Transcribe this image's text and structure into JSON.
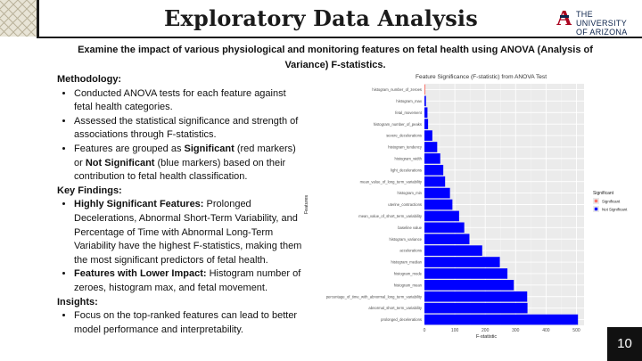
{
  "slide": {
    "title": "Exploratory Data Analysis",
    "subtitle": "Examine the impact of various physiological and monitoring features on fetal health using ANOVA (Analysis of Variance) F-statistics.",
    "logo": {
      "line1": "THE UNIVERSITY",
      "line2": "OF ARIZONA"
    },
    "page_number": "10",
    "sections": [
      {
        "heading": "Methodology:",
        "bullets": [
          {
            "bold": "",
            "text": "Conducted ANOVA tests for each feature against fetal health categories."
          },
          {
            "bold": "",
            "text": "Assessed the statistical significance and strength of associations through F-statistics."
          },
          {
            "bold": "",
            "text": "Features are grouped as <b>Significant</b> (red markers) or <b>Not Significant</b> (blue markers) based on their contribution to fetal health classification."
          }
        ]
      },
      {
        "heading": "Key Findings:",
        "bullets": [
          {
            "bold": "Highly Significant Features:",
            "text": " Prolonged Decelerations, Abnormal Short-Term Variability, and Percentage of Time with Abnormal Long-Term Variability have the highest F-statistics, making them the most significant predictors of fetal health."
          },
          {
            "bold": "Features with Lower Impact:",
            "text": " Histogram number of zeroes, histogram max, and fetal movement."
          }
        ]
      },
      {
        "heading": " Insights:",
        "bullets": [
          {
            "bold": "",
            "text": "Focus on the top-ranked features can lead to better model performance and interpretability."
          }
        ]
      }
    ]
  },
  "chart_data": {
    "type": "bar",
    "orientation": "horizontal",
    "title": "Feature Significance (F-statistic) from ANOVA Test",
    "xlabel": "F-statistic",
    "ylabel": "Features",
    "xlim": [
      0,
      525
    ],
    "xticks": [
      0,
      100,
      200,
      300,
      400,
      500
    ],
    "grid": true,
    "legend": {
      "title": "Significant",
      "position": "right",
      "entries": [
        {
          "label": "Significant",
          "color": "#f8766d"
        },
        {
          "label": "Not Significant",
          "color": "#0000ff"
        }
      ]
    },
    "categories": [
      "histogram_number_of_zeroes",
      "histogram_max",
      "fetal_movement",
      "histogram_number_of_peaks",
      "severe_decelerations",
      "histogram_tendency",
      "histogram_width",
      "light_decelerations",
      "mean_value_of_long_term_variability",
      "histogram_min",
      "uterine_contractions",
      "mean_value_of_short_term_variability",
      "baseline value",
      "histogram_variance",
      "accelerations",
      "histogram_median",
      "histogram_mode",
      "histogram_mean",
      "percentage_of_time_with_abnormal_long_term_variability",
      "abnormal_short_term_variability",
      "prolonged_decelerations"
    ],
    "values": [
      3,
      5,
      10,
      12,
      26,
      42,
      52,
      62,
      68,
      84,
      92,
      114,
      131,
      148,
      190,
      248,
      273,
      294,
      338,
      339,
      505
    ],
    "colors": [
      "#f8766d",
      "#0000ff",
      "#0000ff",
      "#0000ff",
      "#0000ff",
      "#0000ff",
      "#0000ff",
      "#0000ff",
      "#0000ff",
      "#0000ff",
      "#0000ff",
      "#0000ff",
      "#0000ff",
      "#0000ff",
      "#0000ff",
      "#0000ff",
      "#0000ff",
      "#0000ff",
      "#0000ff",
      "#0000ff",
      "#0000ff"
    ]
  }
}
